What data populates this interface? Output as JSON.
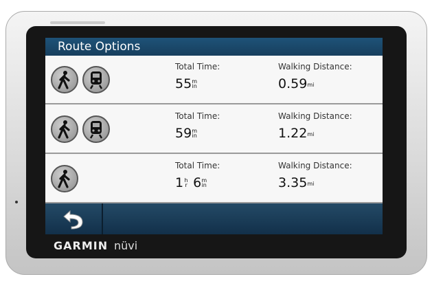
{
  "header": {
    "title": "Route Options"
  },
  "labels": {
    "total_time": "Total Time:",
    "walking_distance": "Walking Distance:"
  },
  "routes": [
    {
      "modes": [
        "walk-icon",
        "train-icon"
      ],
      "time_parts": [
        {
          "num": "55",
          "u1": "m",
          "u2": "in"
        }
      ],
      "distance": "0.59",
      "dist_unit": "mi"
    },
    {
      "modes": [
        "walk-icon",
        "train-icon"
      ],
      "time_parts": [
        {
          "num": "59",
          "u1": "m",
          "u2": "in"
        }
      ],
      "distance": "1.22",
      "dist_unit": "mi"
    },
    {
      "modes": [
        "walk-icon"
      ],
      "time_parts": [
        {
          "num": "1",
          "u1": "h",
          "u2": "r"
        },
        {
          "num": " 6",
          "u1": "m",
          "u2": "in"
        }
      ],
      "distance": "3.35",
      "dist_unit": "mi"
    }
  ],
  "device": {
    "brand": "GARMIN",
    "model": "nüvi"
  },
  "bottom": {
    "back_icon": "back-arrow-icon"
  },
  "colors": {
    "title_bar": "#1e5278",
    "bottom_bar": "#1a3c58"
  }
}
